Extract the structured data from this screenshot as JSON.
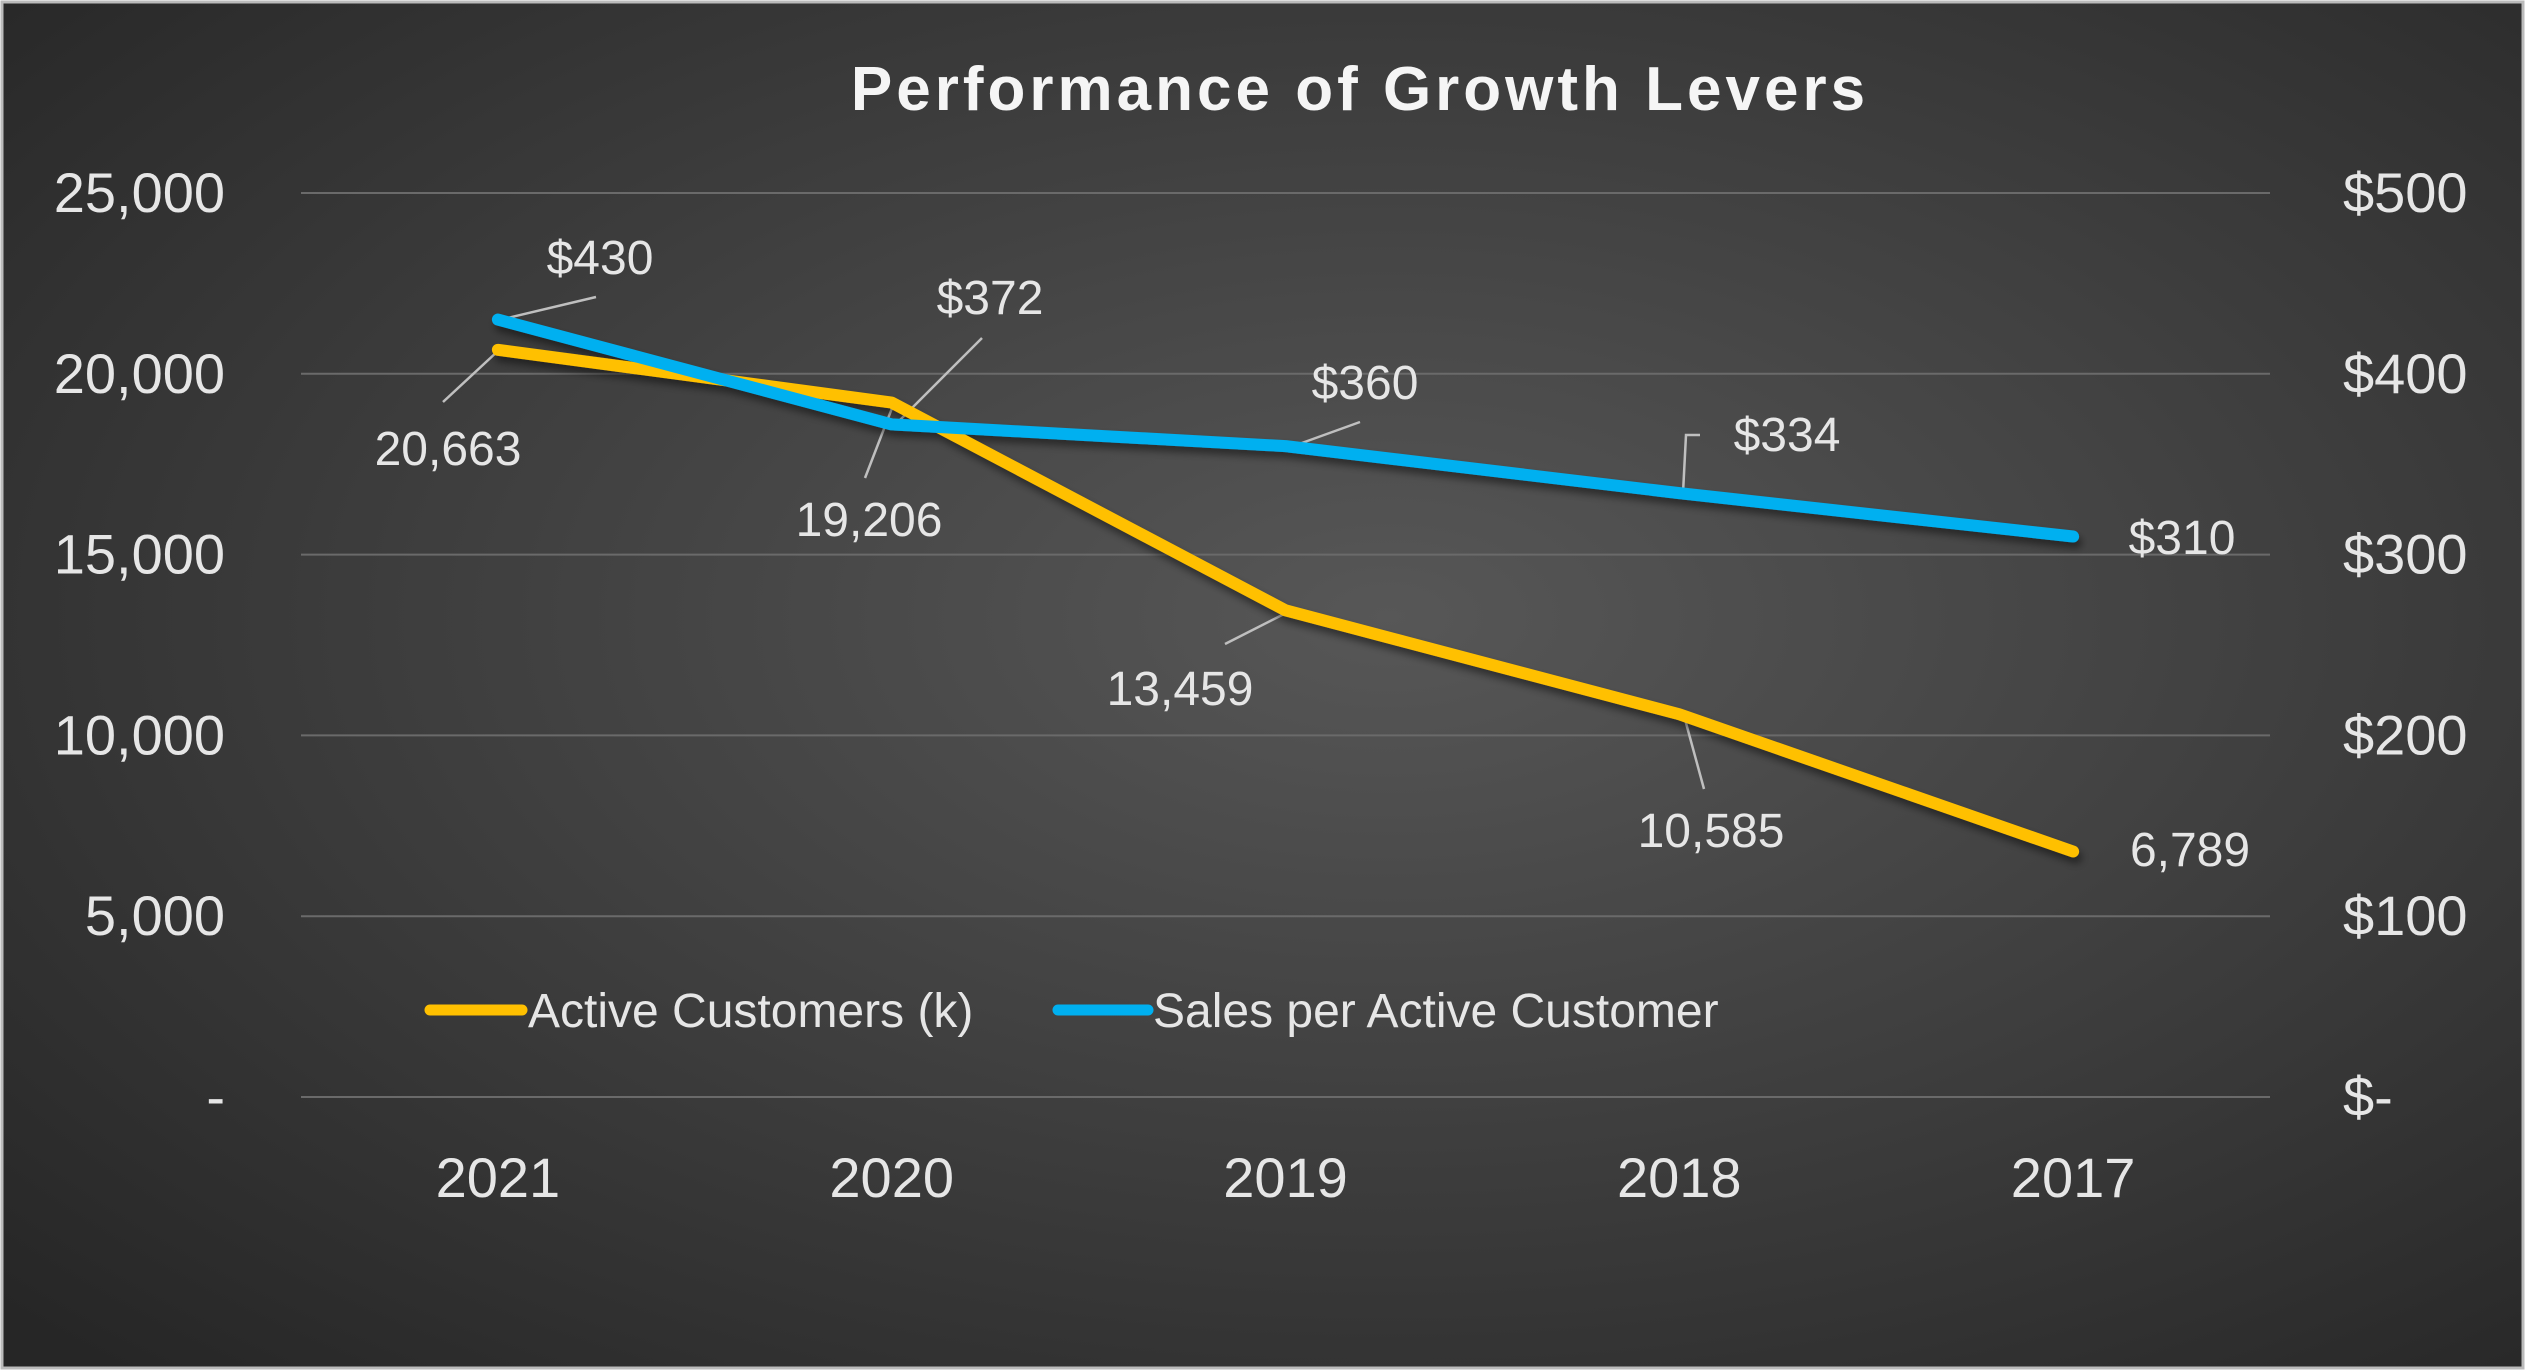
{
  "chart_data": {
    "type": "line",
    "title": "Performance of Growth Levers",
    "categories": [
      "2021",
      "2020",
      "2019",
      "2018",
      "2017"
    ],
    "series": [
      {
        "name": "Active Customers (k)",
        "axis": "left",
        "color": "#FFC000",
        "values": [
          20663,
          19206,
          13459,
          10585,
          6789
        ],
        "labels": [
          "20,663",
          "19,206",
          "13,459",
          "10,585",
          "6,789"
        ]
      },
      {
        "name": "Sales per Active Customer",
        "axis": "right",
        "color": "#00B0F0",
        "values": [
          430,
          372,
          360,
          334,
          310
        ],
        "labels": [
          "$430",
          "$372",
          "$360",
          "$334",
          "$310"
        ]
      }
    ],
    "left_axis": {
      "ylim": [
        0,
        25000
      ],
      "ticks": [
        "-",
        "5,000",
        "10,000",
        "15,000",
        "20,000",
        "25,000"
      ]
    },
    "right_axis": {
      "ylim": [
        0,
        500
      ],
      "ticks": [
        "$-",
        "$100",
        "$200",
        "$300",
        "$400",
        "$500"
      ]
    },
    "grid": true,
    "legend": "bottom-left inside plot"
  }
}
